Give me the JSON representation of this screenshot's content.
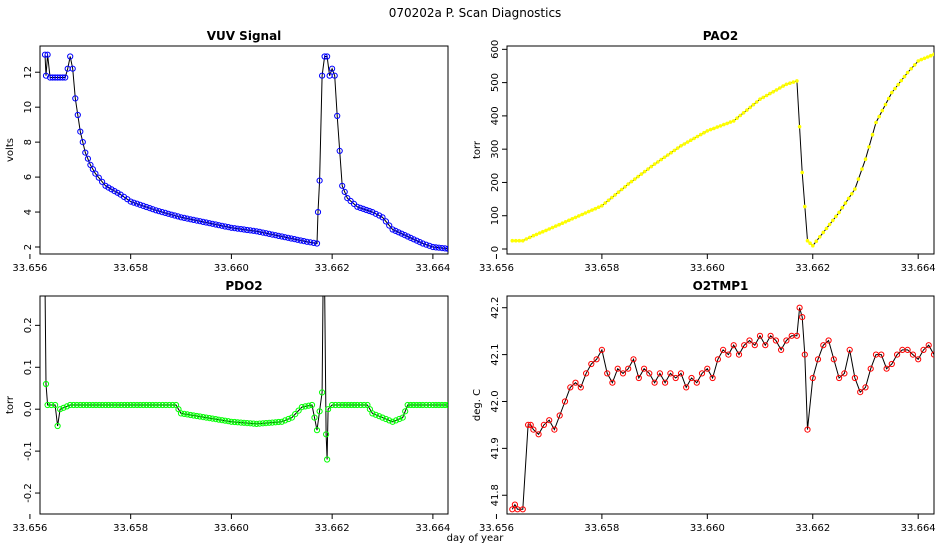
{
  "suptitle": "070202a   P. Scan Diagnostics",
  "xlabel_shared": "day of year",
  "chart_data": [
    {
      "type": "scatter",
      "title": "VUV Signal",
      "xlabel": "",
      "ylabel": "volts",
      "xlim": [
        33.6562,
        33.6643
      ],
      "ylim": [
        1.6,
        13.5
      ],
      "xticks": [
        "33.656",
        "33.658",
        "33.660",
        "33.662",
        "33.664"
      ],
      "xtick_values": [
        33.656,
        33.658,
        33.66,
        33.662,
        33.664
      ],
      "yticks": [
        "2",
        "4",
        "6",
        "8",
        "10",
        "12"
      ],
      "ytick_values": [
        2,
        4,
        6,
        8,
        10,
        12
      ],
      "color": "#0000ff",
      "marker": "circle",
      "line": true,
      "series": [
        {
          "x": [
            33.6563,
            33.65632,
            33.65635,
            33.6564,
            33.6565,
            33.6566,
            33.6567,
            33.65675,
            33.6568,
            33.65685,
            33.6569,
            33.657,
            33.6571,
            33.6572,
            33.6573,
            33.6575,
            33.6578,
            33.658,
            33.6585,
            33.659,
            33.6595,
            33.66,
            33.6605,
            33.661,
            33.6615,
            33.6617,
            33.66172,
            33.66175,
            33.6618,
            33.66185,
            33.6619,
            33.66195,
            33.662,
            33.66205,
            33.6621,
            33.6622,
            33.6623,
            33.6625,
            33.6628,
            33.663,
            33.6632,
            33.6635,
            33.6638,
            33.664,
            33.6643
          ],
          "y": [
            13.0,
            11.8,
            13.0,
            11.7,
            11.7,
            11.7,
            11.7,
            12.2,
            12.9,
            12.2,
            10.5,
            8.6,
            7.4,
            6.7,
            6.2,
            5.5,
            5.0,
            4.6,
            4.1,
            3.7,
            3.4,
            3.1,
            2.9,
            2.6,
            2.3,
            2.2,
            4.0,
            5.8,
            11.8,
            12.9,
            12.9,
            11.8,
            12.2,
            11.8,
            9.5,
            5.5,
            4.8,
            4.3,
            4.0,
            3.7,
            3.0,
            2.6,
            2.2,
            2.0,
            1.9
          ]
        }
      ]
    },
    {
      "type": "scatter",
      "title": "PAO2",
      "xlabel": "",
      "ylabel": "torr",
      "xlim": [
        33.6562,
        33.6643
      ],
      "ylim": [
        -15,
        610
      ],
      "xticks": [
        "33.656",
        "33.658",
        "33.660",
        "33.662",
        "33.664"
      ],
      "xtick_values": [
        33.656,
        33.658,
        33.66,
        33.662,
        33.664
      ],
      "yticks": [
        "0",
        "100",
        "200",
        "300",
        "400",
        "500",
        "600"
      ],
      "ytick_values": [
        0,
        100,
        200,
        300,
        400,
        500,
        600
      ],
      "color": "#ffff00",
      "marker": "circle",
      "line": true,
      "series": [
        {
          "x": [
            33.6563,
            33.6565,
            33.6567,
            33.657,
            33.6575,
            33.658,
            33.6585,
            33.659,
            33.6595,
            33.66,
            33.6605,
            33.661,
            33.6615,
            33.6617,
            33.6618,
            33.6619,
            33.662,
            33.6622,
            33.6625,
            33.6628,
            33.663,
            33.6632,
            33.6635,
            33.6638,
            33.664,
            33.6643
          ],
          "y": [
            25,
            25,
            40,
            60,
            95,
            130,
            195,
            255,
            310,
            355,
            385,
            450,
            495,
            505,
            230,
            25,
            10,
            50,
            110,
            180,
            270,
            380,
            470,
            530,
            565,
            585
          ]
        }
      ]
    },
    {
      "type": "scatter",
      "title": "PDO2",
      "xlabel": "",
      "ylabel": "torr",
      "xlim": [
        33.6562,
        33.6643
      ],
      "ylim": [
        -0.25,
        0.27
      ],
      "xticks": [
        "33.656",
        "33.658",
        "33.660",
        "33.662",
        "33.664"
      ],
      "xtick_values": [
        33.656,
        33.658,
        33.66,
        33.662,
        33.664
      ],
      "yticks": [
        "-0.2",
        "-0.1",
        "0.0",
        "0.1",
        "0.2"
      ],
      "ytick_values": [
        -0.2,
        -0.1,
        0.0,
        0.1,
        0.2
      ],
      "color": "#00ff00",
      "marker": "circle",
      "line": true,
      "series": [
        {
          "x": [
            33.6563,
            33.65632,
            33.65635,
            33.6565,
            33.65655,
            33.6566,
            33.6568,
            33.657,
            33.6575,
            33.658,
            33.6585,
            33.6589,
            33.659,
            33.6595,
            33.66,
            33.6605,
            33.661,
            33.6612,
            33.6614,
            33.6616,
            33.6617,
            33.6618,
            33.66182,
            33.66185,
            33.66188,
            33.6619,
            33.66192,
            33.662,
            33.6622,
            33.6625,
            33.6627,
            33.6628,
            33.663,
            33.6632,
            33.6634,
            33.6635,
            33.6638,
            33.664,
            33.6643
          ],
          "y": [
            0.3,
            0.06,
            0.01,
            0.01,
            -0.04,
            0.0,
            0.01,
            0.01,
            0.01,
            0.01,
            0.01,
            0.01,
            -0.01,
            -0.02,
            -0.03,
            -0.035,
            -0.03,
            -0.02,
            0.005,
            0.01,
            -0.05,
            0.04,
            0.3,
            0.3,
            -0.06,
            -0.12,
            0.0,
            0.01,
            0.01,
            0.01,
            0.01,
            -0.01,
            -0.02,
            -0.03,
            -0.02,
            0.01,
            0.01,
            0.01,
            0.01
          ]
        }
      ]
    },
    {
      "type": "scatter",
      "title": "O2TMP1",
      "xlabel": "",
      "ylabel": "deg. C",
      "xlim": [
        33.6562,
        33.6643
      ],
      "ylim": [
        41.76,
        42.225
      ],
      "xticks": [
        "33.656",
        "33.658",
        "33.660",
        "33.662",
        "33.664"
      ],
      "xtick_values": [
        33.656,
        33.658,
        33.66,
        33.662,
        33.664
      ],
      "yticks": [
        "41.8",
        "41.9",
        "42.0",
        "42.1",
        "42.2"
      ],
      "ytick_values": [
        41.8,
        41.9,
        42.0,
        42.1,
        42.2
      ],
      "color": "#ff0000",
      "marker": "circle",
      "line": true,
      "series": [
        {
          "x": [
            33.6563,
            33.65635,
            33.6564,
            33.6565,
            33.6566,
            33.65665,
            33.6567,
            33.6568,
            33.6569,
            33.657,
            33.6571,
            33.6572,
            33.6573,
            33.6574,
            33.6575,
            33.6576,
            33.6577,
            33.6578,
            33.6579,
            33.658,
            33.6581,
            33.6582,
            33.6583,
            33.6584,
            33.6585,
            33.6586,
            33.6587,
            33.6588,
            33.6589,
            33.659,
            33.6591,
            33.6592,
            33.6593,
            33.6594,
            33.6595,
            33.6596,
            33.6597,
            33.6598,
            33.6599,
            33.66,
            33.6601,
            33.6602,
            33.6603,
            33.6604,
            33.6605,
            33.6606,
            33.6607,
            33.6608,
            33.6609,
            33.661,
            33.6611,
            33.6612,
            33.6613,
            33.6614,
            33.6615,
            33.6616,
            33.6617,
            33.66175,
            33.6618,
            33.66185,
            33.6619,
            33.662,
            33.6621,
            33.6622,
            33.6623,
            33.6624,
            33.6625,
            33.6626,
            33.6627,
            33.6628,
            33.6629,
            33.663,
            33.6631,
            33.6632,
            33.6633,
            33.6634,
            33.6635,
            33.6636,
            33.6637,
            33.6638,
            33.6639,
            33.664,
            33.6641,
            33.6642,
            33.6643
          ],
          "y": [
            41.77,
            41.78,
            41.77,
            41.77,
            41.95,
            41.95,
            41.94,
            41.93,
            41.95,
            41.96,
            41.94,
            41.97,
            42.0,
            42.03,
            42.04,
            42.03,
            42.06,
            42.08,
            42.09,
            42.11,
            42.06,
            42.04,
            42.07,
            42.06,
            42.07,
            42.09,
            42.05,
            42.07,
            42.06,
            42.04,
            42.06,
            42.04,
            42.06,
            42.05,
            42.06,
            42.03,
            42.05,
            42.04,
            42.06,
            42.07,
            42.05,
            42.09,
            42.11,
            42.1,
            42.12,
            42.1,
            42.12,
            42.13,
            42.12,
            42.14,
            42.12,
            42.14,
            42.13,
            42.11,
            42.13,
            42.14,
            42.14,
            42.2,
            42.18,
            42.1,
            41.94,
            42.05,
            42.09,
            42.12,
            42.13,
            42.09,
            42.05,
            42.06,
            42.11,
            42.05,
            42.02,
            42.03,
            42.07,
            42.1,
            42.1,
            42.07,
            42.08,
            42.1,
            42.11,
            42.11,
            42.1,
            42.09,
            42.11,
            42.12,
            42.1
          ]
        }
      ]
    }
  ]
}
